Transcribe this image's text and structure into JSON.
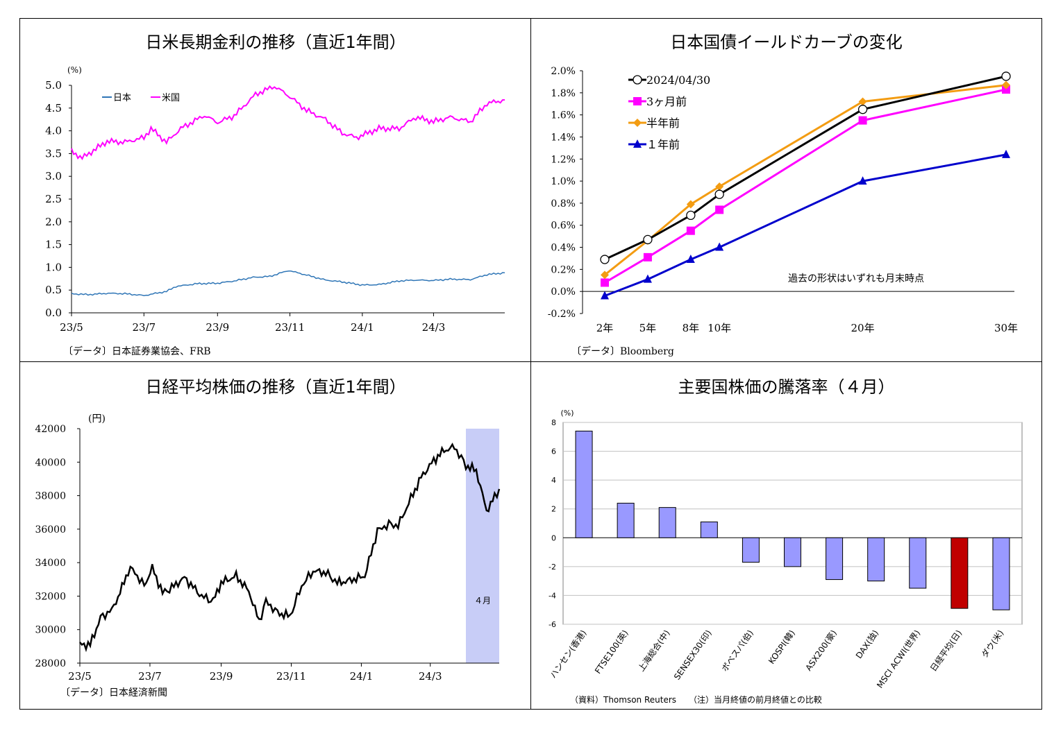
{
  "panels": {
    "p1": {
      "title": "日米長期金利の推移（直近1年間）",
      "source": "〔データ〕日本証券業協会、FRB"
    },
    "p2": {
      "title": "日本国債イールドカーブの変化",
      "source": "〔データ〕Bloomberg"
    },
    "p3": {
      "title": "日経平均株価の推移（直近1年間）",
      "source": "〔データ〕日本経済新聞"
    },
    "p4": {
      "title": "主要国株価の騰落率（４月）",
      "source": "（資料）Thomson Reuters　　（注）当月終値の前月終値との比較"
    }
  },
  "chart_data": [
    {
      "type": "line",
      "title": "日米長期金利の推移（直近1年間）",
      "yunit": "(%)",
      "ylim": [
        0,
        5
      ],
      "yticks": [
        "0.0",
        "0.5",
        "1.0",
        "1.5",
        "2.0",
        "2.5",
        "3.0",
        "3.5",
        "4.0",
        "4.5",
        "5.0"
      ],
      "xticks": [
        "23/5",
        "23/7",
        "23/9",
        "23/11",
        "24/1",
        "24/3"
      ],
      "legend_position": "top-left",
      "colors": {
        "japan": "#2e75b6",
        "us": "#ff00ff"
      },
      "series": [
        {
          "name": "日本",
          "x": [
            "2023-05-01",
            "2023-05-15",
            "2023-06-01",
            "2023-06-15",
            "2023-07-01",
            "2023-07-20",
            "2023-07-28",
            "2023-08-15",
            "2023-09-01",
            "2023-09-15",
            "2023-10-01",
            "2023-10-15",
            "2023-10-31",
            "2023-11-15",
            "2023-12-01",
            "2023-12-15",
            "2024-01-01",
            "2024-01-15",
            "2024-02-01",
            "2024-02-15",
            "2024-03-01",
            "2024-03-15",
            "2024-04-01",
            "2024-04-15",
            "2024-04-30"
          ],
          "values": [
            0.42,
            0.4,
            0.43,
            0.42,
            0.38,
            0.47,
            0.58,
            0.64,
            0.65,
            0.7,
            0.78,
            0.8,
            0.93,
            0.83,
            0.72,
            0.68,
            0.61,
            0.62,
            0.7,
            0.72,
            0.71,
            0.74,
            0.73,
            0.84,
            0.88
          ]
        },
        {
          "name": "米国",
          "x": [
            "2023-05-01",
            "2023-05-10",
            "2023-05-31",
            "2023-06-15",
            "2023-07-01",
            "2023-07-07",
            "2023-07-20",
            "2023-08-01",
            "2023-08-21",
            "2023-09-01",
            "2023-09-15",
            "2023-10-03",
            "2023-10-19",
            "2023-11-01",
            "2023-11-15",
            "2023-12-01",
            "2023-12-15",
            "2023-12-27",
            "2024-01-15",
            "2024-02-01",
            "2024-02-15",
            "2024-03-01",
            "2024-03-15",
            "2024-04-01",
            "2024-04-15",
            "2024-04-30"
          ],
          "values": [
            3.55,
            3.4,
            3.77,
            3.75,
            3.85,
            4.05,
            3.75,
            4.05,
            4.34,
            4.18,
            4.33,
            4.8,
            4.98,
            4.75,
            4.45,
            4.25,
            3.95,
            3.85,
            4.05,
            4.05,
            4.3,
            4.2,
            4.3,
            4.2,
            4.6,
            4.68
          ]
        }
      ]
    },
    {
      "type": "line",
      "title": "日本国債イールドカーブの変化",
      "categories": [
        "2年",
        "5年",
        "8年",
        "10年",
        "20年",
        "30年"
      ],
      "x": [
        2,
        5,
        8,
        10,
        20,
        30
      ],
      "ylim": [
        -0.2,
        2.0
      ],
      "yticks": [
        "-0.2%",
        "0.0%",
        "0.2%",
        "0.4%",
        "0.6%",
        "0.8%",
        "1.0%",
        "1.2%",
        "1.4%",
        "1.6%",
        "1.8%",
        "2.0%"
      ],
      "annotation": "過去の形状はいずれも月末時点",
      "legend_position": "top-left",
      "series": [
        {
          "name": "2024/04/30",
          "color": "#000000",
          "marker": "circle-open",
          "values": [
            0.29,
            0.47,
            0.69,
            0.88,
            1.65,
            1.95
          ]
        },
        {
          "name": "3ヶ月前",
          "color": "#ff00ff",
          "marker": "square",
          "values": [
            0.08,
            0.31,
            0.55,
            0.74,
            1.55,
            1.83
          ]
        },
        {
          "name": "半年前",
          "color": "#f39c12",
          "marker": "diamond",
          "values": [
            0.15,
            0.46,
            0.79,
            0.95,
            1.72,
            1.87
          ]
        },
        {
          "name": "１年前",
          "color": "#0000cc",
          "marker": "triangle",
          "values": [
            -0.04,
            0.11,
            0.29,
            0.4,
            1.0,
            1.24
          ]
        }
      ]
    },
    {
      "type": "line",
      "title": "日経平均株価の推移（直近1年間）",
      "yunit": "(円)",
      "ylim": [
        28000,
        42000
      ],
      "yticks": [
        "28000",
        "30000",
        "32000",
        "34000",
        "36000",
        "38000",
        "40000",
        "42000"
      ],
      "xticks": [
        "23/5",
        "23/7",
        "23/9",
        "23/11",
        "24/1",
        "24/3"
      ],
      "highlight": {
        "label": "４月",
        "from": "2024-04-01",
        "to": "2024-04-30",
        "color": "#c8cdf7"
      },
      "series": [
        {
          "name": "",
          "color": "#000000",
          "x": [
            "2023-05-01",
            "2023-05-10",
            "2023-05-19",
            "2023-05-29",
            "2023-06-05",
            "2023-06-12",
            "2023-06-16",
            "2023-06-26",
            "2023-07-03",
            "2023-07-12",
            "2023-07-20",
            "2023-07-31",
            "2023-08-15",
            "2023-08-25",
            "2023-09-01",
            "2023-09-14",
            "2023-09-25",
            "2023-10-04",
            "2023-10-10",
            "2023-10-20",
            "2023-10-31",
            "2023-11-10",
            "2023-11-20",
            "2023-12-01",
            "2023-12-11",
            "2023-12-20",
            "2024-01-04",
            "2024-01-15",
            "2024-01-25",
            "2024-02-02",
            "2024-02-15",
            "2024-02-22",
            "2024-03-04",
            "2024-03-13",
            "2024-03-22",
            "2024-04-01",
            "2024-04-10",
            "2024-04-19",
            "2024-04-26",
            "2024-04-30"
          ],
          "values": [
            29100,
            29100,
            30700,
            31200,
            32200,
            33500,
            33600,
            32600,
            33700,
            32200,
            32500,
            33100,
            32000,
            31700,
            32800,
            33200,
            32300,
            30500,
            31700,
            31000,
            30800,
            32600,
            33500,
            33400,
            32800,
            32900,
            33200,
            35900,
            36300,
            36200,
            38100,
            39100,
            40100,
            40700,
            40900,
            39800,
            39500,
            37100,
            37900,
            38400
          ]
        }
      ]
    },
    {
      "type": "bar",
      "title": "主要国株価の騰落率（４月）",
      "yunit": "(%)",
      "ylim": [
        -6,
        8
      ],
      "yticks": [
        "-6",
        "-4",
        "-2",
        "0",
        "2",
        "4",
        "6",
        "8"
      ],
      "categories": [
        "ハンセン(香港)",
        "FTSE100(英)",
        "上海総合(中)",
        "SENSEX30(印)",
        "ボベスパ(伯)",
        "KOSPI(韓)",
        "ASX200(豪)",
        "DAX(独)",
        "MSCI ACWI(世界)",
        "日経平均(日)",
        "ダウ(米)"
      ],
      "values": [
        7.4,
        2.4,
        2.1,
        1.1,
        -1.7,
        -2.0,
        -2.9,
        -3.0,
        -3.5,
        -4.9,
        -5.0
      ],
      "colors": [
        "#9999ff",
        "#9999ff",
        "#9999ff",
        "#9999ff",
        "#9999ff",
        "#9999ff",
        "#9999ff",
        "#9999ff",
        "#9999ff",
        "#c00000",
        "#9999ff"
      ]
    }
  ]
}
